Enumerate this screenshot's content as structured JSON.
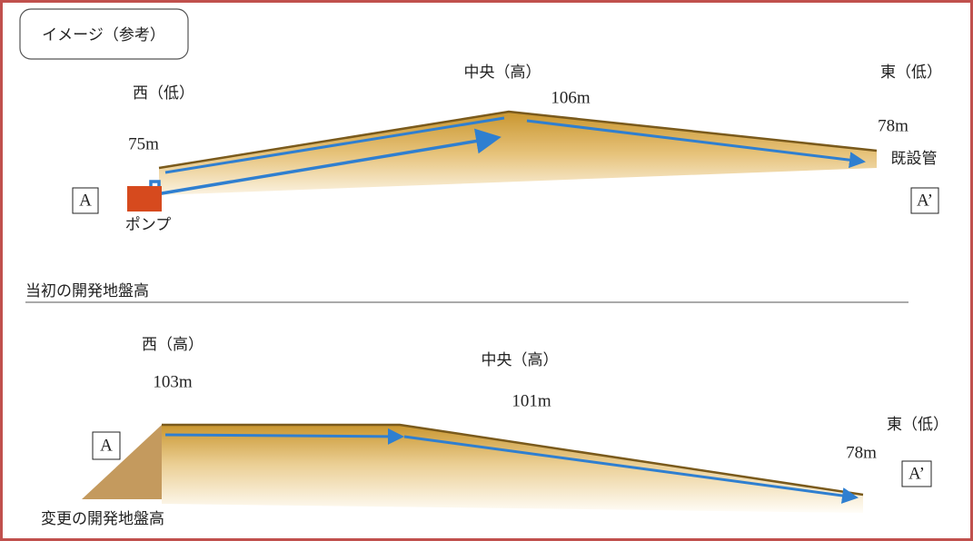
{
  "label": "イメージ（参考）",
  "top": {
    "west": "西（低）",
    "west_height": "75m",
    "center": "中央（高）",
    "center_height": "106m",
    "east": "東（低）",
    "east_height": "78m",
    "existing_pipe": "既設管",
    "point_a": "A",
    "point_a2": "A’",
    "pump": "ポンプ",
    "caption": "当初の開発地盤高"
  },
  "bottom": {
    "west": "西（高）",
    "west_height": "103m",
    "center": "中央（高）",
    "center_height": "101m",
    "east": "東（低）",
    "east_height": "78m",
    "point_a": "A",
    "point_a2": "A’",
    "caption": "変更の開発地盤高"
  }
}
